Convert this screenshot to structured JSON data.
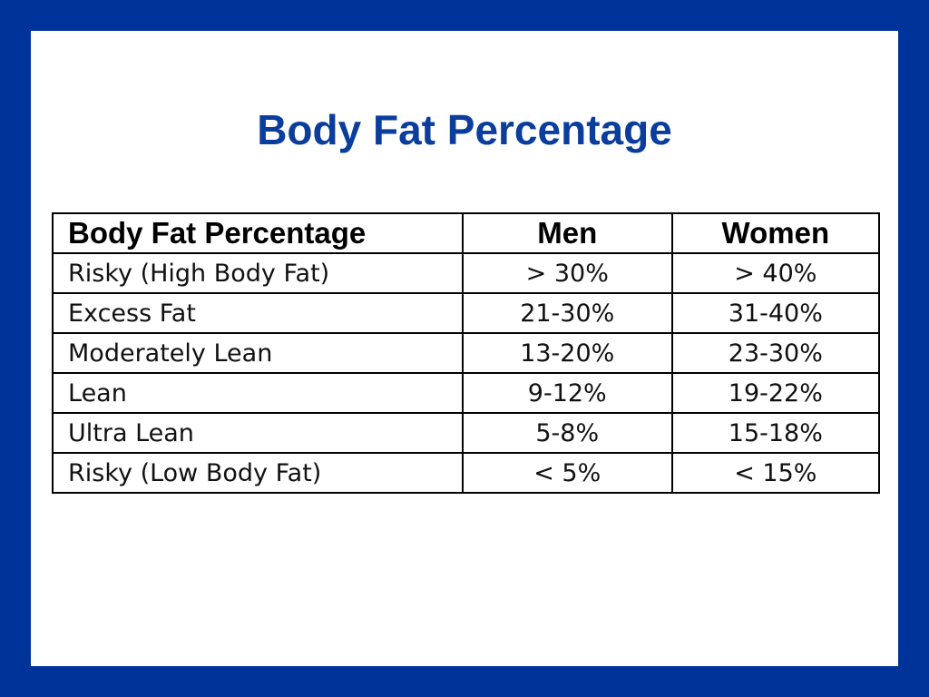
{
  "slide": {
    "title": "Body Fat Percentage",
    "colors": {
      "border": "#003399",
      "title": "#0a3d9c",
      "background": "#ffffff"
    }
  },
  "table": {
    "headers": [
      "Body Fat Percentage",
      "Men",
      "Women"
    ],
    "rows": [
      {
        "category": "Risky (High Body Fat)",
        "men": "> 30%",
        "women": "> 40%"
      },
      {
        "category": "Excess Fat",
        "men": "21-30%",
        "women": "31-40%"
      },
      {
        "category": "Moderately Lean",
        "men": "13-20%",
        "women": "23-30%"
      },
      {
        "category": "Lean",
        "men": "9-12%",
        "women": "19-22%"
      },
      {
        "category": "Ultra Lean",
        "men": "5-8%",
        "women": "15-18%"
      },
      {
        "category": "Risky (Low Body Fat)",
        "men": "< 5%",
        "women": "< 15%"
      }
    ]
  }
}
